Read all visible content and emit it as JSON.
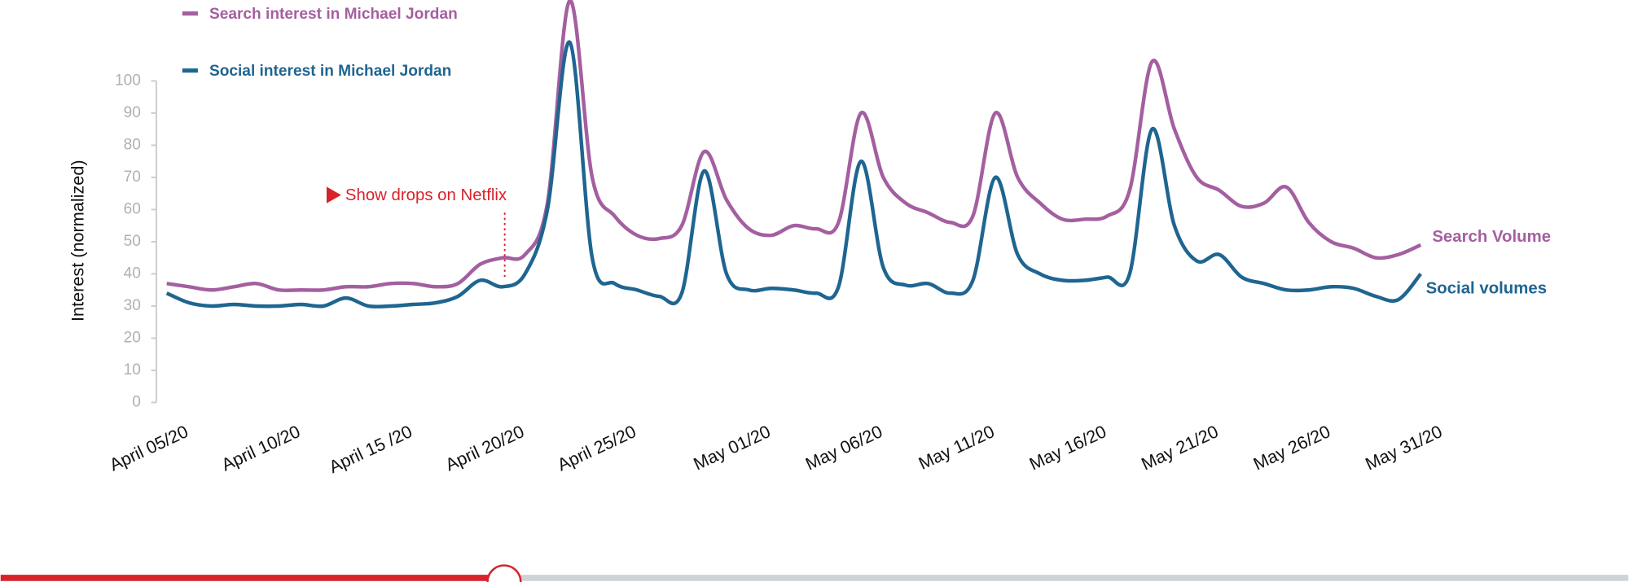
{
  "chart_data": {
    "type": "line",
    "y_label": "Interest (normalized)",
    "annotation": "Show drops on Netflix",
    "categories": [
      "April  05/20",
      null,
      null,
      null,
      null,
      "April 10/20",
      null,
      null,
      null,
      null,
      "April 15 /20",
      null,
      null,
      null,
      null,
      "April 20/20",
      null,
      null,
      null,
      null,
      "April 25/20",
      null,
      null,
      null,
      null,
      null,
      "May 01/20",
      null,
      null,
      null,
      null,
      "May 06/20",
      null,
      null,
      null,
      null,
      "May 11/20",
      null,
      null,
      null,
      null,
      "May 16/20",
      null,
      null,
      null,
      null,
      "May 21/20",
      null,
      null,
      null,
      null,
      "May 26/20",
      null,
      null,
      null,
      null,
      "May 31/20"
    ],
    "series": [
      {
        "name": "Search interest in Michael Jordan",
        "end_label": "Search Volume",
        "color": "#a45fa0",
        "values": [
          37,
          36,
          35,
          36,
          37,
          35,
          35,
          35,
          36,
          36,
          37,
          37,
          36,
          37,
          43,
          45,
          46,
          62,
          125,
          70,
          58,
          52,
          51,
          55,
          78,
          63,
          54,
          52,
          55,
          54,
          56,
          90,
          70,
          62,
          59,
          56,
          58,
          90,
          70,
          62,
          57,
          57,
          58,
          66,
          106,
          85,
          70,
          66,
          61,
          62,
          67,
          56,
          50,
          48,
          45,
          46,
          49
        ]
      },
      {
        "name": "Social interest in Michael Jordan",
        "end_label": "Social volumes",
        "color": "#1f6591",
        "values": [
          34,
          31,
          30,
          30.5,
          30,
          30,
          30.5,
          30,
          32.5,
          30,
          30,
          30.5,
          31,
          33,
          38,
          36,
          40,
          60,
          112,
          45,
          37,
          35,
          33,
          34,
          72,
          40,
          35,
          35.5,
          35,
          34,
          36,
          75,
          42,
          36.5,
          37,
          34,
          38,
          70,
          46,
          40,
          38,
          38,
          39,
          40,
          85,
          55,
          44,
          46,
          39,
          37,
          35,
          35,
          36,
          35.5,
          33,
          32,
          40
        ]
      }
    ],
    "ylim": [
      0,
      100
    ],
    "yticks": [
      0,
      10,
      20,
      30,
      40,
      50,
      60,
      70,
      80,
      90,
      100
    ]
  }
}
